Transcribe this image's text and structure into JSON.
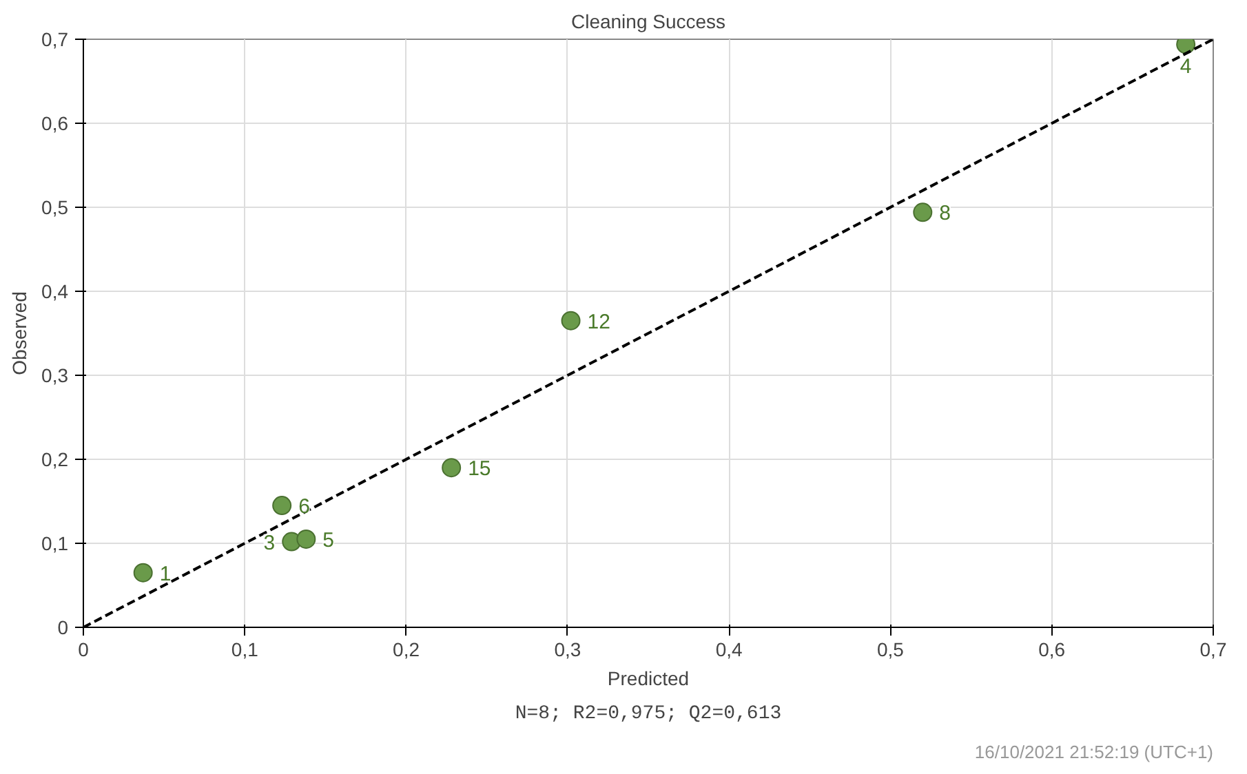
{
  "chart_data": {
    "type": "scatter",
    "title": "Cleaning Success",
    "xlabel": "Predicted",
    "ylabel": "Observed",
    "x": [
      0.037,
      0.123,
      0.129,
      0.138,
      0.228,
      0.302,
      0.52,
      0.683
    ],
    "series": [
      {
        "color": "#6a9a4a",
        "values": [
          0.065,
          0.145,
          0.102,
          0.105,
          0.19,
          0.365,
          0.494,
          0.694
        ],
        "marker": "circle"
      },
      {
        "type": "line",
        "color": "#000000",
        "x": [
          0,
          0.7
        ],
        "values": [
          0,
          0.7
        ],
        "line_style": "dashed",
        "marker": "none"
      }
    ],
    "xlim": [
      0,
      0.7
    ],
    "ylim": [
      0,
      0.7
    ],
    "xticks": [
      0,
      {
        "value": 0.1,
        "label": "0,1"
      },
      {
        "value": 0.2,
        "label": "0,2"
      },
      {
        "value": 0.3,
        "label": "0,3"
      },
      {
        "value": 0.4,
        "label": "0,4"
      },
      {
        "value": 0.5,
        "label": "0,5"
      },
      {
        "value": 0.6,
        "label": "0,6"
      },
      {
        "value": 0.7,
        "label": "0,7"
      }
    ],
    "yticks": [
      0,
      {
        "value": 0.1,
        "label": "0,1"
      },
      {
        "value": 0.2,
        "label": "0,2"
      },
      {
        "value": 0.3,
        "label": "0,3"
      },
      {
        "value": 0.4,
        "label": "0,4"
      },
      {
        "value": 0.5,
        "label": "0,5"
      },
      {
        "value": 0.6,
        "label": "0,6"
      },
      {
        "value": 0.7,
        "label": "0,7"
      }
    ],
    "grid": true,
    "annotations": [
      {
        "text": "1",
        "x": 0.037,
        "y": 0.065
      },
      {
        "text": "6",
        "x": 0.123,
        "y": 0.145
      },
      {
        "text": "3",
        "x": 0.129,
        "y": 0.102
      },
      {
        "text": "5",
        "x": 0.138,
        "y": 0.105
      },
      {
        "text": "15",
        "x": 0.228,
        "y": 0.19
      },
      {
        "text": "12",
        "x": 0.302,
        "y": 0.365
      },
      {
        "text": "8",
        "x": 0.52,
        "y": 0.494
      },
      {
        "text": "4",
        "x": 0.683,
        "y": 0.694
      },
      "N=8; R2=0,975; Q2=0,613",
      "16/10/2021 21:52:19 (UTC+1)"
    ]
  }
}
